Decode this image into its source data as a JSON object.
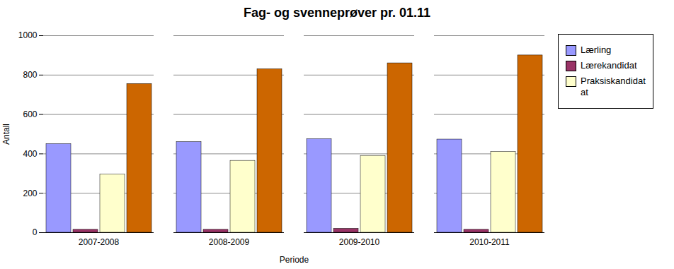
{
  "chart_data": {
    "type": "bar",
    "title": "Fag- og svenneprøver pr. 01.11",
    "xlabel": "Periode",
    "ylabel": "Antall",
    "categories": [
      "2007-2008",
      "2008-2009",
      "2009-2010",
      "2010-2011"
    ],
    "series": [
      {
        "name": "Lærling",
        "color": "#9999ff",
        "values": [
          450,
          460,
          475,
          473
        ]
      },
      {
        "name": "Lærekandidat",
        "color": "#993366",
        "values": [
          15,
          15,
          20,
          15
        ]
      },
      {
        "name": "Praksiskandidat\nat",
        "color": "#ffffcc",
        "values": [
          295,
          365,
          390,
          410
        ]
      },
      {
        "name": null,
        "color": "#cc6600",
        "values": [
          755,
          830,
          860,
          900
        ]
      }
    ],
    "ylim": [
      0,
      1000
    ],
    "yticks": [
      0,
      200,
      400,
      600,
      800,
      1000
    ],
    "grid": true,
    "legend": "right"
  }
}
